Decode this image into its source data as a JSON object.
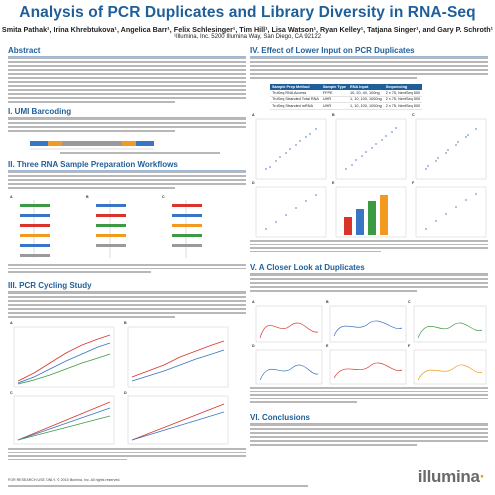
{
  "poster": {
    "title": "Analysis of PCR Duplicates and Library Diversity in RNA-Seq",
    "authors": "Smita Pathak¹, Irina Khrebtukova¹, Angelica Barr¹, Felix Schlesinger¹, Tim Hill¹, Lisa Watson¹, Ryan Kelley¹, Tatjana Singer¹, and Gary P. Schroth¹",
    "affiliation": "¹Illumina, Inc. 5200 Illumina Way, San Diego, CA 92122",
    "logo": "illumina"
  },
  "sections": {
    "abstract": "Abstract",
    "umi": "I. UMI Barcoding",
    "workflows": "II. Three RNA Sample Preparation Workflows",
    "pcr": "III. PCR Cycling Study",
    "lower_input": "IV. Effect of Lower Input on PCR Duplicates",
    "closer_look": "V. A Closer Look at Duplicates",
    "conclusions": "VI. Conclusions"
  },
  "table": {
    "headers": [
      "Sample Prep Method",
      "Sample Type",
      "RNA Input",
      "Sequencing"
    ],
    "rows": [
      [
        "TruSeq RNA Access",
        "FFPE",
        "10, 20, 40, 100ng",
        "2 x 75, NextSeq 500"
      ],
      [
        "TruSeq Stranded Total RNA",
        "UHR",
        "1, 10, 100, 1000ng",
        "2 x 75, NextSeq 500"
      ],
      [
        "TruSeq Stranded mRNA",
        "UHR",
        "1, 10, 100, 1000ng",
        "2 x 75, NextSeq 500"
      ]
    ]
  },
  "panels": {
    "a": "A",
    "b": "B",
    "c": "C",
    "d": "D",
    "e": "E",
    "f": "F",
    "g": "G"
  },
  "footer": {
    "research": "FOR RESEARCH USE ONLY. © 2015 Illumina, Inc. All rights reserved."
  },
  "colors": {
    "title": "#1f5f99",
    "accent_orange": "#f29a1d",
    "series_red": "#d9342b",
    "series_blue": "#3a74c4",
    "series_green": "#3c9a45"
  }
}
